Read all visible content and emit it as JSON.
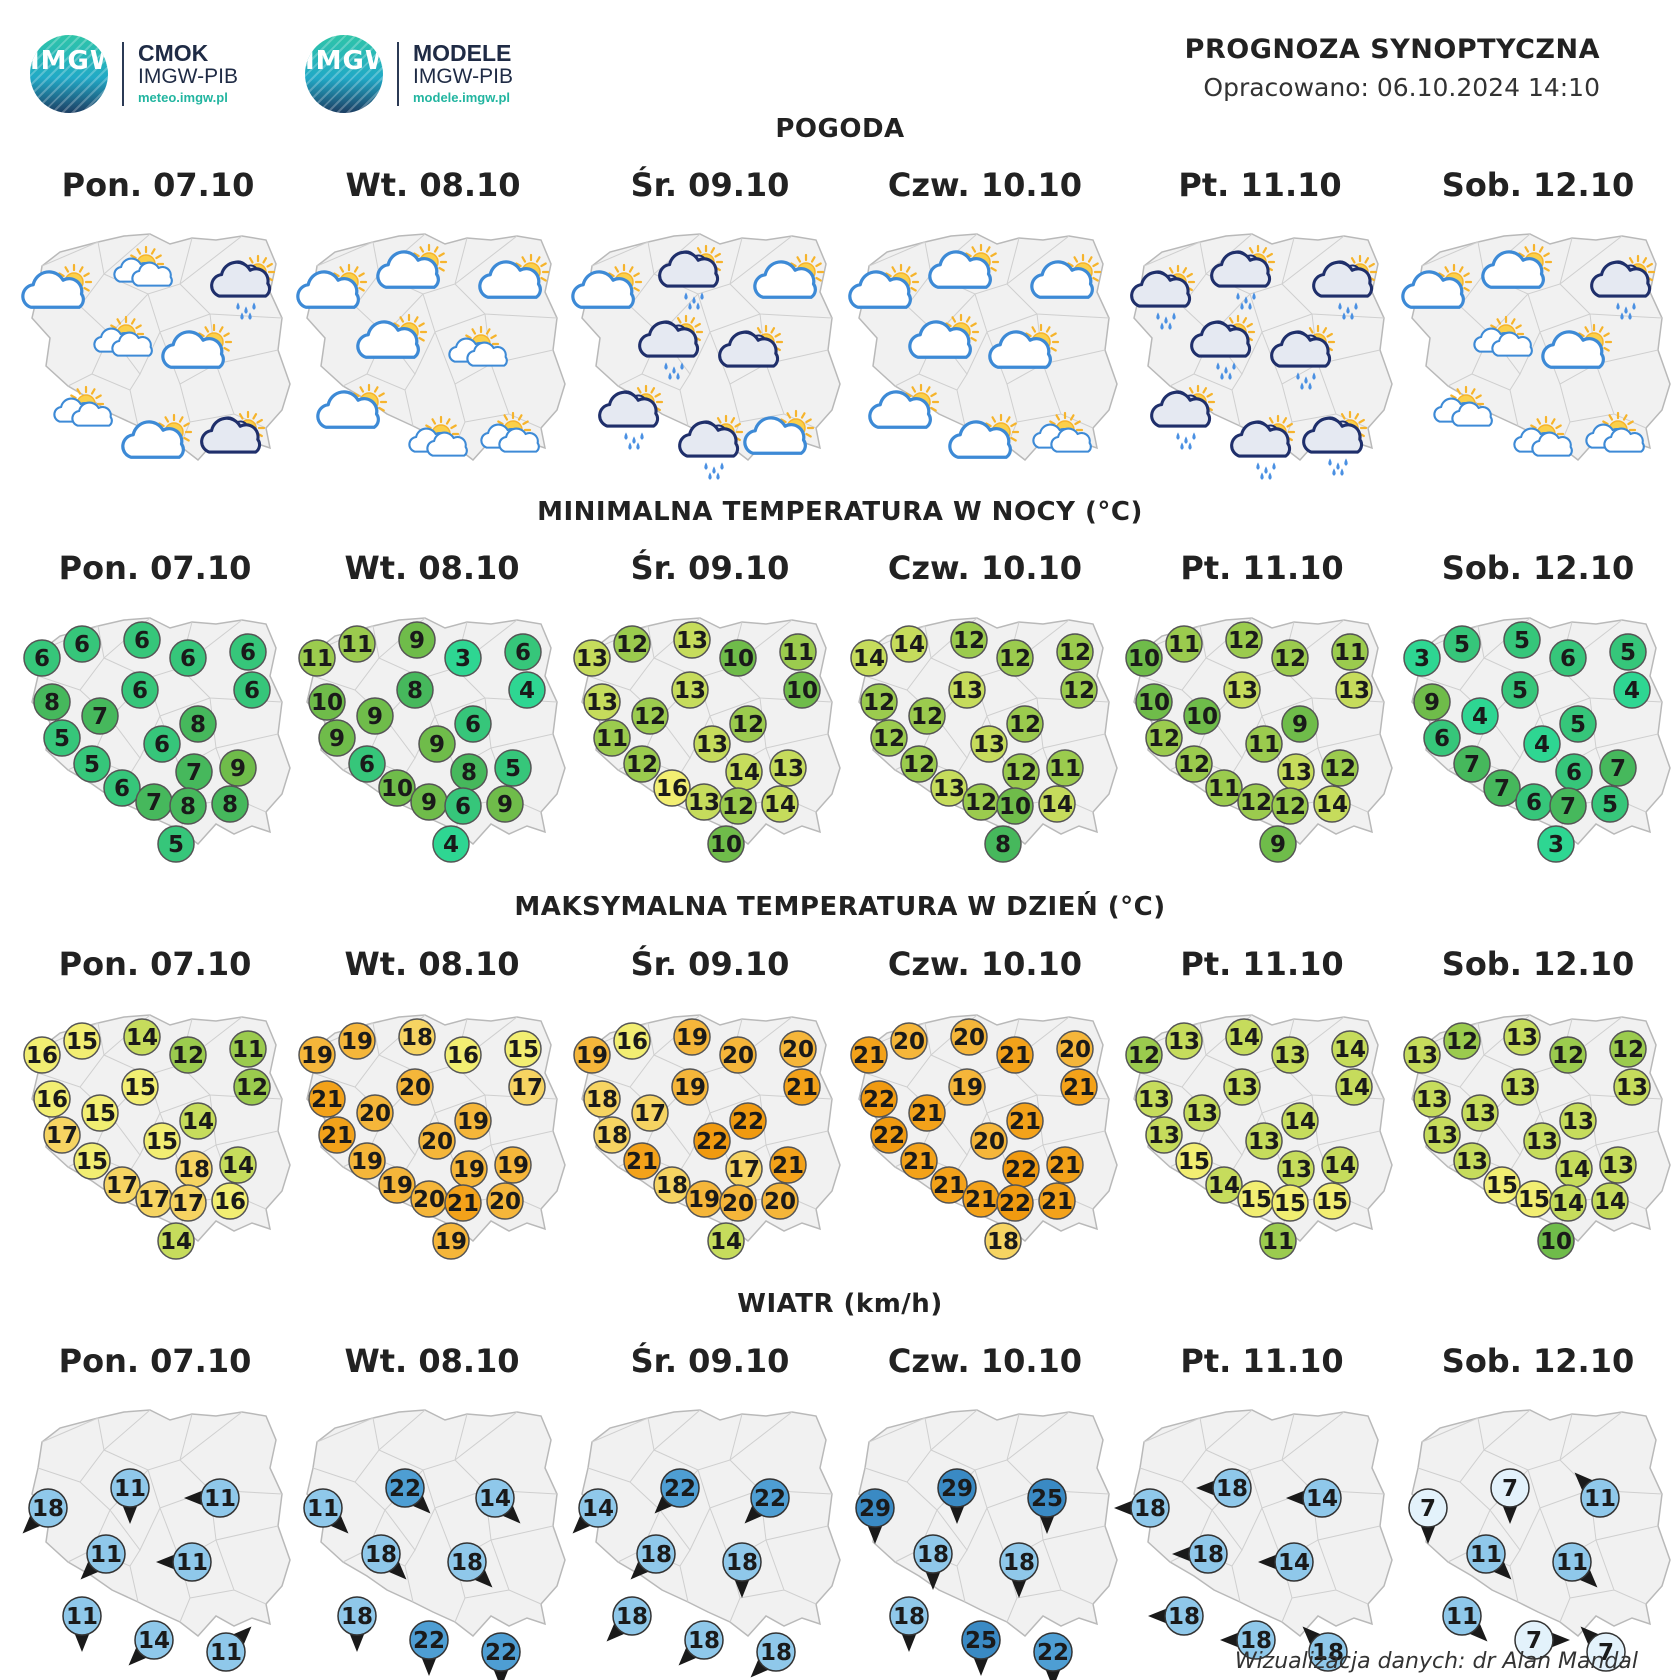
{
  "header": {
    "logo1": {
      "badge": "IMGW",
      "line1": "CMOK",
      "line2": "IMGW-PIB",
      "url": "meteo.imgw.pl"
    },
    "logo2": {
      "badge": "IMGW",
      "line1": "MODELE",
      "line2": "IMGW-PIB",
      "url": "modele.imgw.pl"
    },
    "title": "PROGNOZA SYNOPTYCZNA",
    "subtitle": "Opracowano: 06.10.2024 14:10"
  },
  "days": [
    "Pon. 07.10",
    "Wt. 08.10",
    "Śr. 09.10",
    "Czw. 10.10",
    "Pt. 11.10",
    "Sob. 12.10"
  ],
  "sections": {
    "weather": "POGODA",
    "min_temp": "MINIMALNA TEMPERATURA W NOCY (°C)",
    "max_temp": "MAKSYMALNA TEMPERATURA W DZIEŃ (°C)",
    "wind": "WIATR (km/h)"
  },
  "weather": [
    [
      "partly-cloudy",
      "sun-clouds",
      "cloud-rain",
      "sun-clouds",
      "partly-cloudy",
      "sun-clouds",
      "partly-cloudy",
      "cloud-dark"
    ],
    [
      "partly-cloudy",
      "partly-cloudy",
      "partly-cloudy",
      "partly-cloudy",
      "sun-clouds",
      "partly-cloudy",
      "sun-clouds",
      "sun-clouds"
    ],
    [
      "partly-cloudy",
      "cloud-rain",
      "partly-cloudy",
      "cloud-rain",
      "cloud-dark",
      "cloud-rain",
      "cloud-rain",
      "partly-cloudy"
    ],
    [
      "partly-cloudy",
      "partly-cloudy",
      "partly-cloudy",
      "partly-cloudy",
      "partly-cloudy",
      "partly-cloudy",
      "partly-cloudy",
      "sun-clouds"
    ],
    [
      "cloud-rain",
      "cloud-rain",
      "cloud-rain",
      "cloud-rain",
      "cloud-rain",
      "cloud-rain",
      "cloud-rain",
      "cloud-rain"
    ],
    [
      "partly-cloudy",
      "partly-cloudy",
      "cloud-rain",
      "sun-clouds",
      "partly-cloudy",
      "sun-clouds",
      "sun-clouds",
      "sun-clouds"
    ]
  ],
  "min_temp": [
    [
      6,
      6,
      6,
      6,
      6,
      6,
      8,
      7,
      6,
      8,
      5,
      6,
      7,
      9,
      5,
      6,
      7,
      8,
      8,
      5
    ],
    [
      11,
      11,
      9,
      3,
      6,
      4,
      10,
      9,
      8,
      6,
      9,
      9,
      8,
      5,
      6,
      10,
      9,
      6,
      9,
      4
    ],
    [
      13,
      12,
      13,
      10,
      11,
      10,
      13,
      12,
      13,
      12,
      11,
      13,
      14,
      13,
      12,
      16,
      13,
      12,
      14,
      10
    ],
    [
      14,
      14,
      12,
      12,
      12,
      12,
      12,
      12,
      13,
      12,
      12,
      13,
      12,
      11,
      12,
      13,
      12,
      10,
      14,
      8
    ],
    [
      10,
      11,
      12,
      12,
      11,
      13,
      10,
      10,
      13,
      9,
      12,
      11,
      13,
      12,
      12,
      11,
      12,
      12,
      14,
      9
    ],
    [
      3,
      5,
      5,
      6,
      5,
      4,
      9,
      4,
      5,
      5,
      6,
      4,
      6,
      7,
      7,
      7,
      6,
      7,
      5,
      3
    ]
  ],
  "max_temp": [
    [
      16,
      15,
      14,
      12,
      11,
      12,
      16,
      15,
      15,
      14,
      17,
      15,
      18,
      14,
      15,
      17,
      17,
      17,
      16,
      14
    ],
    [
      19,
      19,
      18,
      16,
      15,
      17,
      21,
      20,
      20,
      19,
      21,
      20,
      19,
      19,
      19,
      19,
      20,
      21,
      20,
      19
    ],
    [
      19,
      16,
      19,
      20,
      20,
      21,
      18,
      17,
      19,
      22,
      18,
      22,
      17,
      21,
      21,
      18,
      19,
      20,
      20,
      14
    ],
    [
      21,
      20,
      20,
      21,
      20,
      21,
      22,
      21,
      19,
      21,
      22,
      20,
      22,
      21,
      21,
      21,
      21,
      22,
      21,
      18
    ],
    [
      12,
      13,
      14,
      13,
      14,
      14,
      13,
      13,
      13,
      14,
      13,
      13,
      13,
      14,
      15,
      14,
      15,
      15,
      15,
      11
    ],
    [
      13,
      12,
      13,
      12,
      12,
      13,
      13,
      13,
      13,
      13,
      13,
      13,
      14,
      13,
      13,
      15,
      15,
      14,
      14,
      10
    ]
  ],
  "wind": [
    {
      "values": [
        18,
        11,
        11,
        11,
        11,
        11,
        14,
        11
      ],
      "directions": [
        "SW",
        "S",
        "W",
        "SW",
        "W",
        "S",
        "SW",
        "NE"
      ]
    },
    {
      "values": [
        11,
        22,
        14,
        18,
        18,
        18,
        22,
        22
      ],
      "directions": [
        "SE",
        "SE",
        "SE",
        "SE",
        "SE",
        "S",
        "S",
        "S"
      ]
    },
    {
      "values": [
        14,
        22,
        22,
        18,
        18,
        18,
        18,
        18
      ],
      "directions": [
        "SW",
        "SW",
        "SW",
        "SW",
        "S",
        "SW",
        "SW",
        "SW"
      ]
    },
    {
      "values": [
        29,
        29,
        25,
        18,
        18,
        18,
        25,
        22
      ],
      "directions": [
        "S",
        "S",
        "S",
        "S",
        "S",
        "S",
        "S",
        "S"
      ]
    },
    {
      "values": [
        18,
        18,
        14,
        18,
        14,
        18,
        18,
        18
      ],
      "directions": [
        "W",
        "W",
        "W",
        "W",
        "W",
        "W",
        "W",
        "NW"
      ]
    },
    {
      "values": [
        7,
        7,
        11,
        11,
        11,
        11,
        7,
        7
      ],
      "directions": [
        "S",
        "S",
        "NW",
        "SE",
        "SE",
        "SE",
        "E",
        "NW"
      ]
    }
  ],
  "credit": "Wizualizacja danych: dr Alan Mandal"
}
